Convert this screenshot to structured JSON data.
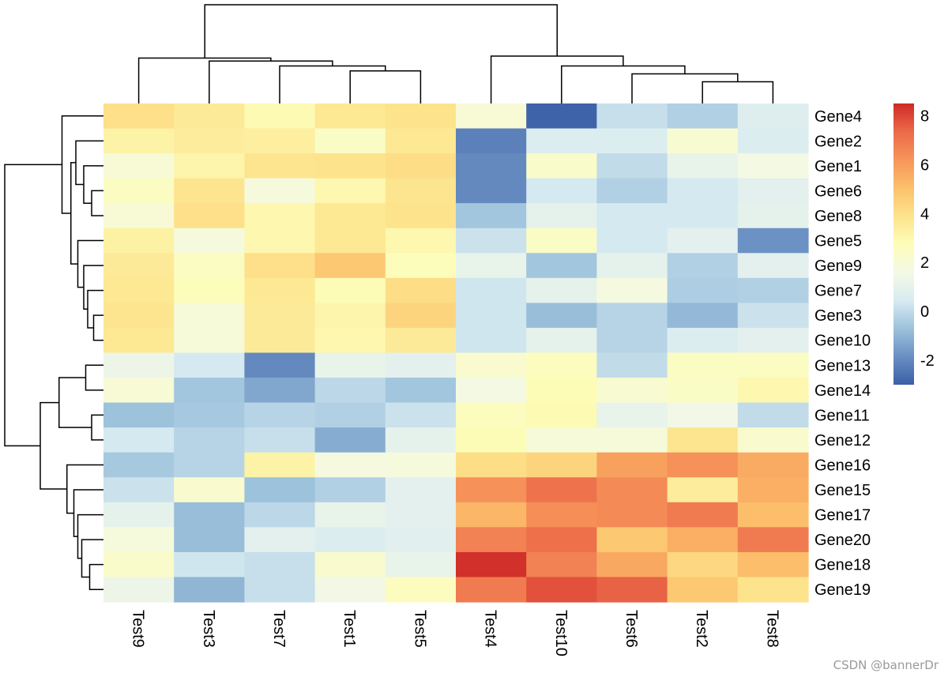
{
  "chart_data": {
    "type": "heatmap",
    "title": "",
    "xlabel": "",
    "ylabel": "",
    "rows": [
      "Gene4",
      "Gene2",
      "Gene1",
      "Gene6",
      "Gene8",
      "Gene5",
      "Gene9",
      "Gene7",
      "Gene3",
      "Gene10",
      "Gene13",
      "Gene14",
      "Gene11",
      "Gene12",
      "Gene16",
      "Gene15",
      "Gene17",
      "Gene20",
      "Gene18",
      "Gene19"
    ],
    "columns": [
      "Test9",
      "Test3",
      "Test7",
      "Test1",
      "Test5",
      "Test4",
      "Test10",
      "Test6",
      "Test2",
      "Test8"
    ],
    "values": [
      [
        4.0,
        3.6,
        2.9,
        3.7,
        3.9,
        2.0,
        -2.9,
        0.1,
        -0.3,
        0.7
      ],
      [
        3.2,
        3.5,
        3.4,
        2.4,
        3.7,
        -2.2,
        0.6,
        0.6,
        2.1,
        0.6
      ],
      [
        2.0,
        3.1,
        3.8,
        3.9,
        4.1,
        -2.0,
        2.3,
        0.0,
        1.1,
        1.6
      ],
      [
        2.5,
        3.8,
        1.8,
        3.0,
        3.8,
        -2.0,
        0.4,
        -0.3,
        0.4,
        0.9
      ],
      [
        2.0,
        4.0,
        3.0,
        3.7,
        3.9,
        -0.6,
        1.0,
        0.4,
        0.4,
        1.0
      ],
      [
        3.3,
        1.8,
        3.0,
        3.7,
        3.0,
        0.2,
        2.4,
        0.4,
        0.9,
        -1.8
      ],
      [
        3.6,
        2.5,
        4.0,
        4.8,
        2.7,
        1.1,
        -0.6,
        1.0,
        -0.3,
        0.9
      ],
      [
        3.7,
        2.7,
        3.7,
        2.8,
        4.1,
        0.3,
        1.0,
        1.7,
        -0.4,
        -0.3
      ],
      [
        3.8,
        1.9,
        3.6,
        3.1,
        4.4,
        0.3,
        -0.8,
        -0.2,
        -0.9,
        0.2
      ],
      [
        3.7,
        1.9,
        3.6,
        3.0,
        3.6,
        0.3,
        1.0,
        -0.2,
        0.6,
        0.9
      ],
      [
        1.3,
        0.4,
        -2.0,
        1.1,
        0.9,
        2.2,
        2.6,
        0.0,
        2.5,
        2.5
      ],
      [
        2.0,
        -0.6,
        -1.3,
        -0.1,
        -0.6,
        1.6,
        2.8,
        2.1,
        2.4,
        3.0
      ],
      [
        -0.7,
        -0.5,
        -0.2,
        -0.3,
        0.2,
        2.6,
        2.9,
        1.1,
        1.5,
        0.0
      ],
      [
        0.4,
        -0.2,
        0.1,
        -1.2,
        1.0,
        2.8,
        1.9,
        1.9,
        3.8,
        2.2
      ],
      [
        -0.5,
        -0.2,
        3.2,
        1.7,
        1.8,
        4.1,
        4.4,
        5.9,
        6.3,
        5.6
      ],
      [
        0.2,
        2.2,
        -0.7,
        -0.3,
        0.9,
        6.3,
        7.1,
        6.5,
        3.5,
        5.5
      ],
      [
        1.0,
        -0.8,
        -0.1,
        1.1,
        0.9,
        5.3,
        6.4,
        6.5,
        6.9,
        5.1
      ],
      [
        1.8,
        -0.8,
        0.9,
        0.6,
        0.8,
        6.7,
        7.2,
        4.8,
        5.5,
        6.9
      ],
      [
        2.3,
        0.3,
        0.1,
        2.2,
        1.1,
        8.4,
        6.7,
        5.7,
        4.3,
        5.1
      ],
      [
        1.3,
        -1.0,
        0.1,
        1.5,
        2.6,
        6.9,
        7.8,
        7.5,
        4.8,
        3.9
      ]
    ],
    "colorbar": {
      "ticks": [
        8,
        6,
        4,
        2,
        0,
        -2
      ],
      "range": [
        -3,
        8.5
      ],
      "colors": [
        "#3b5fa6",
        "#6a8fc3",
        "#9dc2dc",
        "#d8ebf2",
        "#f4f9e4",
        "#fdfdb9",
        "#fde38c",
        "#fcc06b",
        "#f7955a",
        "#ec6a49",
        "#cf2a28"
      ]
    },
    "legend": "right"
  },
  "watermark": "CSDN @bannerDr"
}
